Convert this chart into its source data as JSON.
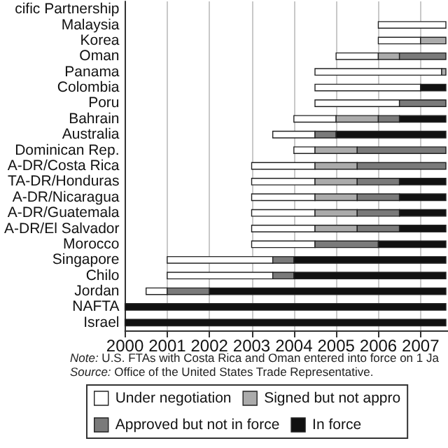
{
  "chart_data": {
    "type": "bar",
    "orientation": "horizontal",
    "categories": [
      "cific Partnership",
      "Malaysia",
      "Korea",
      "Oman",
      "Panama",
      "Colombia",
      "Poru",
      "Bahrain",
      "Australia",
      "Dominican Rep.",
      "A-DR/Costa Rica",
      "TA-DR/Honduras",
      "A-DR/Nicaragua",
      "A-DR/Guatemala",
      "A-DR/El Salvador",
      "Morocco",
      "Singapore",
      "Chilo",
      "Jordan",
      "NAFTA",
      "Israel"
    ],
    "series": [
      {
        "name": "Under negotiation",
        "color": "#ffffff",
        "base": [
          null,
          2006.0,
          2006.0,
          2005.0,
          2004.5,
          2004.5,
          2004.5,
          2004.0,
          2003.5,
          2004.0,
          2003.0,
          2003.0,
          2003.0,
          2003.0,
          2003.0,
          2003.0,
          2001.0,
          2001.0,
          2000.5,
          null,
          null
        ],
        "values": [
          null,
          1.6,
          1.0,
          1.0,
          3.0,
          2.5,
          2.0,
          1.0,
          1.0,
          0.5,
          1.5,
          1.5,
          1.5,
          1.5,
          1.5,
          1.5,
          2.5,
          2.5,
          0.5,
          null,
          null
        ]
      },
      {
        "name": "Signed but not appro",
        "color": "#ababab",
        "base": [
          null,
          null,
          2007.0,
          2006.0,
          2007.5,
          null,
          null,
          2005.0,
          null,
          2004.5,
          2004.5,
          2004.5,
          2004.5,
          2004.5,
          2004.5,
          null,
          null,
          null,
          null,
          null,
          null
        ],
        "values": [
          null,
          null,
          0.6,
          0.5,
          0.1,
          null,
          null,
          1.0,
          null,
          1.0,
          1.0,
          1.0,
          1.0,
          1.0,
          1.0,
          null,
          null,
          null,
          null,
          null,
          null
        ]
      },
      {
        "name": "Approved but not in force",
        "color": "#7a7a7a",
        "base": [
          null,
          null,
          null,
          2006.5,
          null,
          null,
          2006.5,
          2006.0,
          2004.5,
          2005.5,
          2005.5,
          2005.5,
          2005.5,
          2005.5,
          2005.5,
          2004.5,
          2003.5,
          2003.5,
          2001.0,
          null,
          null
        ],
        "values": [
          null,
          null,
          null,
          1.1,
          null,
          null,
          1.1,
          0.5,
          0.5,
          2.1,
          2.1,
          1.0,
          1.0,
          1.0,
          1.0,
          1.5,
          0.5,
          0.5,
          1.0,
          null,
          null
        ]
      },
      {
        "name": "In force",
        "color": "#111111",
        "base": [
          null,
          null,
          null,
          null,
          null,
          2007.0,
          null,
          2006.5,
          2005.0,
          null,
          null,
          2006.5,
          2006.5,
          2006.5,
          2006.5,
          2006.0,
          2004.0,
          2004.0,
          2002.0,
          2000,
          2000
        ],
        "values": [
          null,
          null,
          null,
          null,
          null,
          0.6,
          null,
          1.1,
          2.6,
          null,
          null,
          1.1,
          1.1,
          1.1,
          1.1,
          1.6,
          3.6,
          3.6,
          5.6,
          7.6,
          7.6
        ]
      }
    ],
    "xlim": [
      2000,
      2007.65
    ],
    "xticks": [
      2000,
      2001,
      2002,
      2003,
      2004,
      2005,
      2006,
      2007
    ],
    "grid": "x",
    "legend": "bottom",
    "annotations": [
      "Note: U.S. FTAs with Costa Rica and Oman entered into force on 1 Ja",
      "Source: Office of the United States Trade Representative."
    ]
  }
}
